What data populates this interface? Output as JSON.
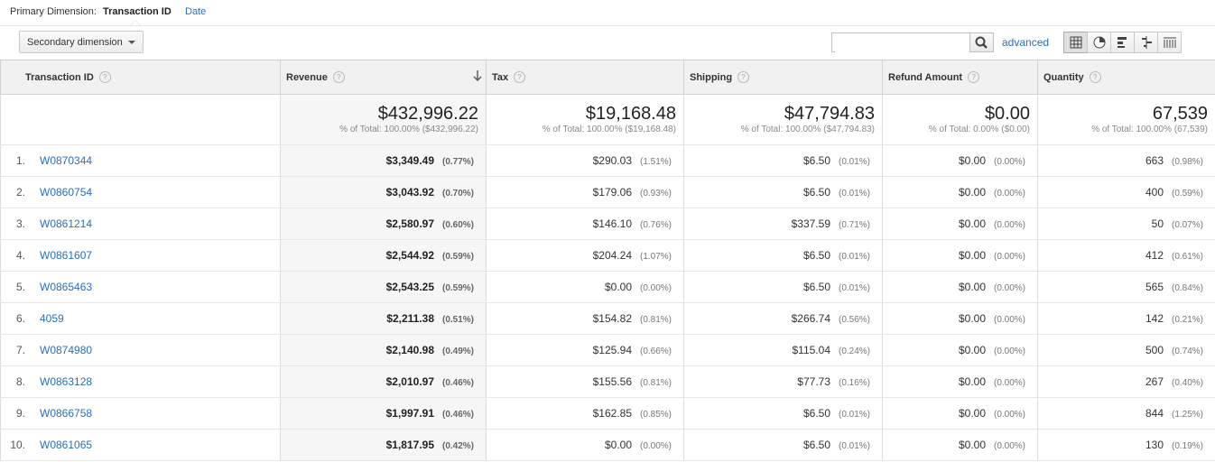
{
  "primary_dimension": {
    "label": "Primary Dimension:",
    "current": "Transaction ID",
    "option": "Date"
  },
  "secondary_dimension": {
    "label": "Secondary dimension"
  },
  "search": {
    "value": "",
    "advanced_label": "advanced"
  },
  "view_buttons": [
    "table-view",
    "pie-view",
    "performance-view",
    "comparison-view",
    "pivot-view"
  ],
  "columns": {
    "dimension": "Transaction ID",
    "revenue": "Revenue",
    "tax": "Tax",
    "shipping": "Shipping",
    "refund": "Refund Amount",
    "quantity": "Quantity"
  },
  "totals": {
    "revenue": {
      "value": "$432,996.22",
      "sub": "% of Total: 100.00% ($432,996.22)"
    },
    "tax": {
      "value": "$19,168.48",
      "sub": "% of Total: 100.00% ($19,168.48)"
    },
    "shipping": {
      "value": "$47,794.83",
      "sub": "% of Total: 100.00% ($47,794.83)"
    },
    "refund": {
      "value": "$0.00",
      "sub": "% of Total: 0.00% ($0.00)"
    },
    "quantity": {
      "value": "67,539",
      "sub": "% of Total: 100.00% (67,539)"
    }
  },
  "rows": [
    {
      "idx": "1.",
      "id": "W0870344",
      "revenue": "$3,349.49",
      "revenue_pct": "(0.77%)",
      "tax": "$290.03",
      "tax_pct": "(1.51%)",
      "shipping": "$6.50",
      "shipping_pct": "(0.01%)",
      "refund": "$0.00",
      "refund_pct": "(0.00%)",
      "qty": "663",
      "qty_pct": "(0.98%)"
    },
    {
      "idx": "2.",
      "id": "W0860754",
      "revenue": "$3,043.92",
      "revenue_pct": "(0.70%)",
      "tax": "$179.06",
      "tax_pct": "(0.93%)",
      "shipping": "$6.50",
      "shipping_pct": "(0.01%)",
      "refund": "$0.00",
      "refund_pct": "(0.00%)",
      "qty": "400",
      "qty_pct": "(0.59%)"
    },
    {
      "idx": "3.",
      "id": "W0861214",
      "revenue": "$2,580.97",
      "revenue_pct": "(0.60%)",
      "tax": "$146.10",
      "tax_pct": "(0.76%)",
      "shipping": "$337.59",
      "shipping_pct": "(0.71%)",
      "refund": "$0.00",
      "refund_pct": "(0.00%)",
      "qty": "50",
      "qty_pct": "(0.07%)"
    },
    {
      "idx": "4.",
      "id": "W0861607",
      "revenue": "$2,544.92",
      "revenue_pct": "(0.59%)",
      "tax": "$204.24",
      "tax_pct": "(1.07%)",
      "shipping": "$6.50",
      "shipping_pct": "(0.01%)",
      "refund": "$0.00",
      "refund_pct": "(0.00%)",
      "qty": "412",
      "qty_pct": "(0.61%)"
    },
    {
      "idx": "5.",
      "id": "W0865463",
      "revenue": "$2,543.25",
      "revenue_pct": "(0.59%)",
      "tax": "$0.00",
      "tax_pct": "(0.00%)",
      "shipping": "$6.50",
      "shipping_pct": "(0.01%)",
      "refund": "$0.00",
      "refund_pct": "(0.00%)",
      "qty": "565",
      "qty_pct": "(0.84%)"
    },
    {
      "idx": "6.",
      "id": "4059",
      "revenue": "$2,211.38",
      "revenue_pct": "(0.51%)",
      "tax": "$154.82",
      "tax_pct": "(0.81%)",
      "shipping": "$266.74",
      "shipping_pct": "(0.56%)",
      "refund": "$0.00",
      "refund_pct": "(0.00%)",
      "qty": "142",
      "qty_pct": "(0.21%)"
    },
    {
      "idx": "7.",
      "id": "W0874980",
      "revenue": "$2,140.98",
      "revenue_pct": "(0.49%)",
      "tax": "$125.94",
      "tax_pct": "(0.66%)",
      "shipping": "$115.04",
      "shipping_pct": "(0.24%)",
      "refund": "$0.00",
      "refund_pct": "(0.00%)",
      "qty": "500",
      "qty_pct": "(0.74%)"
    },
    {
      "idx": "8.",
      "id": "W0863128",
      "revenue": "$2,010.97",
      "revenue_pct": "(0.46%)",
      "tax": "$155.56",
      "tax_pct": "(0.81%)",
      "shipping": "$77.73",
      "shipping_pct": "(0.16%)",
      "refund": "$0.00",
      "refund_pct": "(0.00%)",
      "qty": "267",
      "qty_pct": "(0.40%)"
    },
    {
      "idx": "9.",
      "id": "W0866758",
      "revenue": "$1,997.91",
      "revenue_pct": "(0.46%)",
      "tax": "$162.85",
      "tax_pct": "(0.85%)",
      "shipping": "$6.50",
      "shipping_pct": "(0.01%)",
      "refund": "$0.00",
      "refund_pct": "(0.00%)",
      "qty": "844",
      "qty_pct": "(1.25%)"
    },
    {
      "idx": "10.",
      "id": "W0861065",
      "revenue": "$1,817.95",
      "revenue_pct": "(0.42%)",
      "tax": "$0.00",
      "tax_pct": "(0.00%)",
      "shipping": "$6.50",
      "shipping_pct": "(0.01%)",
      "refund": "$0.00",
      "refund_pct": "(0.00%)",
      "qty": "130",
      "qty_pct": "(0.19%)"
    }
  ],
  "colors": {
    "link": "#2a6ebb",
    "header_bg": "#f1f1f1",
    "sorted_bg": "#f6f6f6"
  }
}
